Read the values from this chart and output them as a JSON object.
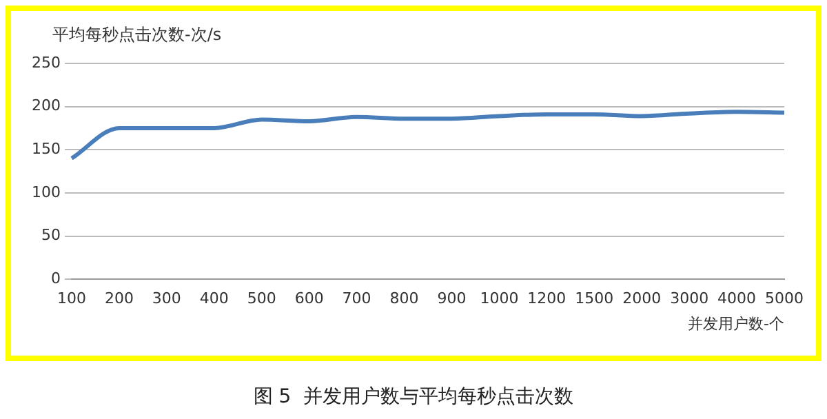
{
  "chart_data": {
    "type": "line",
    "ylabel": "平均每秒点击次数-次/s",
    "xlabel": "并发用户数-个",
    "annotations": [
      "图 5  并发用户数与平均每秒点击次数"
    ],
    "categories": [
      "100",
      "200",
      "300",
      "400",
      "500",
      "600",
      "700",
      "800",
      "900",
      "1000",
      "1200",
      "1500",
      "2000",
      "3000",
      "4000",
      "5000"
    ],
    "series": [
      {
        "color": "#4a7ebb",
        "values": [
          140,
          175,
          175,
          175,
          185,
          183,
          188,
          186,
          186,
          189,
          191,
          191,
          189,
          192,
          194,
          193
        ]
      }
    ],
    "ylim": [
      0,
      250
    ],
    "yticks": [
      0,
      50,
      100,
      150,
      200,
      250
    ],
    "grid": "y",
    "legend": false,
    "marker": "none",
    "line_style": "solid"
  }
}
